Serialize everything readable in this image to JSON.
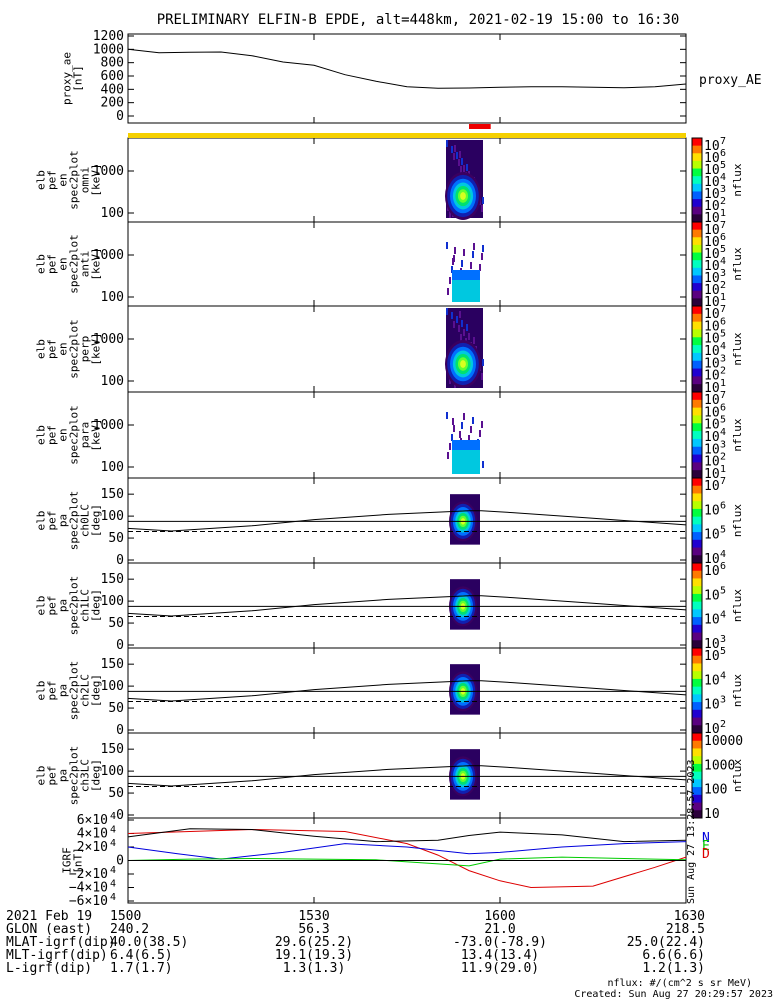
{
  "title": "PRELIMINARY ELFIN-B EPDE, alt=448km, 2021-02-19 15:00 to 16:30",
  "colors": {
    "science_bar": "#f5d000",
    "science_zone_bar": "#ee0000",
    "line_black": "#000000",
    "igrf_blue": "#0000dd",
    "igrf_green": "#00cc00",
    "igrf_red": "#dd0000"
  },
  "proxy_ae": {
    "ylabel": [
      "proxy_ae",
      "[nT]"
    ],
    "yticks": [
      "1200",
      "1000",
      "800",
      "600",
      "400",
      "200",
      "0"
    ],
    "side_label": "proxy_AE"
  },
  "energy_panels": [
    {
      "ylabel": [
        "elb",
        "pef",
        "en",
        "spec2plot",
        "omni",
        "[keV]"
      ],
      "yticks": [
        "1000",
        "100"
      ],
      "cbar_label": "nflux",
      "cbar_ticks": [
        "7",
        "6",
        "5",
        "4",
        "3",
        "2",
        "1"
      ]
    },
    {
      "ylabel": [
        "elb",
        "pef",
        "en",
        "spec2plot",
        "anti",
        "[keV]"
      ],
      "yticks": [
        "1000",
        "100"
      ],
      "cbar_label": "nflux",
      "cbar_ticks": [
        "7",
        "6",
        "5",
        "4",
        "3",
        "2",
        "1"
      ]
    },
    {
      "ylabel": [
        "elb",
        "pef",
        "en",
        "spec2plot",
        "perp",
        "[keV]"
      ],
      "yticks": [
        "1000",
        "100"
      ],
      "cbar_label": "nflux",
      "cbar_ticks": [
        "7",
        "6",
        "5",
        "4",
        "3",
        "2",
        "1"
      ]
    },
    {
      "ylabel": [
        "elb",
        "pef",
        "en",
        "spec2plot",
        "para",
        "[keV]"
      ],
      "yticks": [
        "1000",
        "100"
      ],
      "cbar_label": "nflux",
      "cbar_ticks": [
        "7",
        "6",
        "5",
        "4",
        "3",
        "2",
        "1"
      ]
    }
  ],
  "pa_panels": [
    {
      "ylabel": [
        "elb",
        "pef",
        "pa",
        "spec2plot",
        "ch0LC",
        "[deg]"
      ],
      "yticks": [
        "150",
        "100",
        "50",
        "0"
      ],
      "cbar_label": "nflux",
      "cbar_ticks": [
        "7",
        "6",
        "5",
        "4"
      ]
    },
    {
      "ylabel": [
        "elb",
        "pef",
        "pa",
        "spec2plot",
        "ch1LC",
        "[deg]"
      ],
      "yticks": [
        "150",
        "100",
        "50",
        "0"
      ],
      "cbar_label": "nflux",
      "cbar_ticks": [
        "6",
        "5",
        "4",
        "3"
      ]
    },
    {
      "ylabel": [
        "elb",
        "pef",
        "pa",
        "spec2plot",
        "ch2LC",
        "[deg]"
      ],
      "yticks": [
        "150",
        "100",
        "50",
        "0"
      ],
      "cbar_label": "nflux",
      "cbar_ticks": [
        "5",
        "4",
        "3",
        "2"
      ]
    },
    {
      "ylabel": [
        "elb",
        "pef",
        "pa",
        "spec2plot",
        "ch3LC",
        "[deg]"
      ],
      "yticks": [
        "150",
        "100",
        "50",
        "0"
      ],
      "cbar_label": "nflux",
      "cbar_ticks_plain": [
        "10000",
        "1000",
        "100",
        "10"
      ]
    }
  ],
  "igrf": {
    "ylabel": [
      "IGRF",
      "[nT]"
    ],
    "yticks": [
      "6",
      "4",
      "2",
      "0",
      "−2",
      "−4",
      "−6"
    ],
    "legend": [
      "N",
      "E",
      "D"
    ]
  },
  "footer_rows": [
    {
      "label": "2021 Feb 19",
      "values": [
        "1500",
        "1530",
        "1600",
        "1630"
      ]
    },
    {
      "label": "GLON (east)",
      "values": [
        "240.2",
        "56.3",
        "21.0",
        "218.5"
      ]
    },
    {
      "label": "MLAT-igrf(dip)",
      "values": [
        "40.0(38.5)",
        "29.6(25.2)",
        "-73.0(-78.9)",
        "25.0(22.4)"
      ]
    },
    {
      "label": "MLT-igrf(dip)",
      "values": [
        "6.4(6.5)",
        "19.1(19.3)",
        "13.4(13.4)",
        "6.6(6.6)"
      ]
    },
    {
      "label": "L-igrf(dip)",
      "values": [
        "1.7(1.7)",
        "1.3(1.3)",
        "11.9(29.0)",
        "1.2(1.3)"
      ]
    }
  ],
  "units_note": "nflux: #/(cm^2 s sr MeV)",
  "created_note": "Created: Sun Aug 27 20:29:57 2023",
  "side_stamp": "Sun Aug 27 13:28:57 2023",
  "chart_data": {
    "type": "line",
    "x_unit": "UT (hhmm)",
    "x_range": [
      "1500",
      "1630"
    ],
    "proxy_ae": {
      "x": [
        0,
        5,
        10,
        15,
        20,
        25,
        30,
        35,
        40,
        45,
        50,
        55,
        60,
        65,
        70,
        75,
        80,
        85,
        90
      ],
      "y": [
        1000,
        950,
        955,
        960,
        905,
        810,
        760,
        620,
        520,
        440,
        415,
        420,
        430,
        440,
        440,
        430,
        425,
        440,
        480
      ],
      "ylim": [
        0,
        1200
      ]
    },
    "science_zone_minutes": [
      55,
      58.5
    ],
    "pa_loss_cone_solid": {
      "x": [
        0,
        7,
        20,
        30,
        42,
        55,
        57,
        62,
        75,
        90
      ],
      "y": [
        72,
        66,
        78,
        92,
        104,
        112,
        112,
        108,
        95,
        80
      ],
      "reference_line": 88,
      "dashed_line": 65,
      "ylim": [
        0,
        180
      ]
    },
    "igrf_components": [
      {
        "name": "N",
        "x": [
          0,
          20,
          35,
          45,
          50,
          55,
          60,
          65,
          75,
          85,
          90
        ],
        "y": [
          40000,
          46000,
          43000,
          25000,
          8000,
          -15000,
          -30000,
          -40000,
          -38000,
          -10000,
          5000
        ]
      },
      {
        "name": "E",
        "x": [
          0,
          10,
          20,
          30,
          40,
          50,
          55,
          60,
          70,
          80,
          90
        ],
        "y": [
          35000,
          47000,
          46000,
          36000,
          28000,
          30000,
          37000,
          42000,
          38000,
          28000,
          30000
        ]
      },
      {
        "name": "D",
        "x": [
          0,
          8,
          15,
          25,
          35,
          45,
          55,
          60,
          70,
          80,
          90
        ],
        "y": [
          20000,
          10000,
          2000,
          12000,
          25000,
          20000,
          10000,
          12000,
          20000,
          25000,
          28000
        ]
      },
      {
        "name": "green",
        "x": [
          0,
          10,
          20,
          30,
          40,
          50,
          55,
          60,
          70,
          80,
          90
        ],
        "y": [
          0,
          2000,
          3000,
          2000,
          1000,
          -5000,
          -8000,
          2000,
          5000,
          3000,
          1000
        ]
      }
    ],
    "igrf_ylim": [
      -60000,
      60000
    ]
  }
}
